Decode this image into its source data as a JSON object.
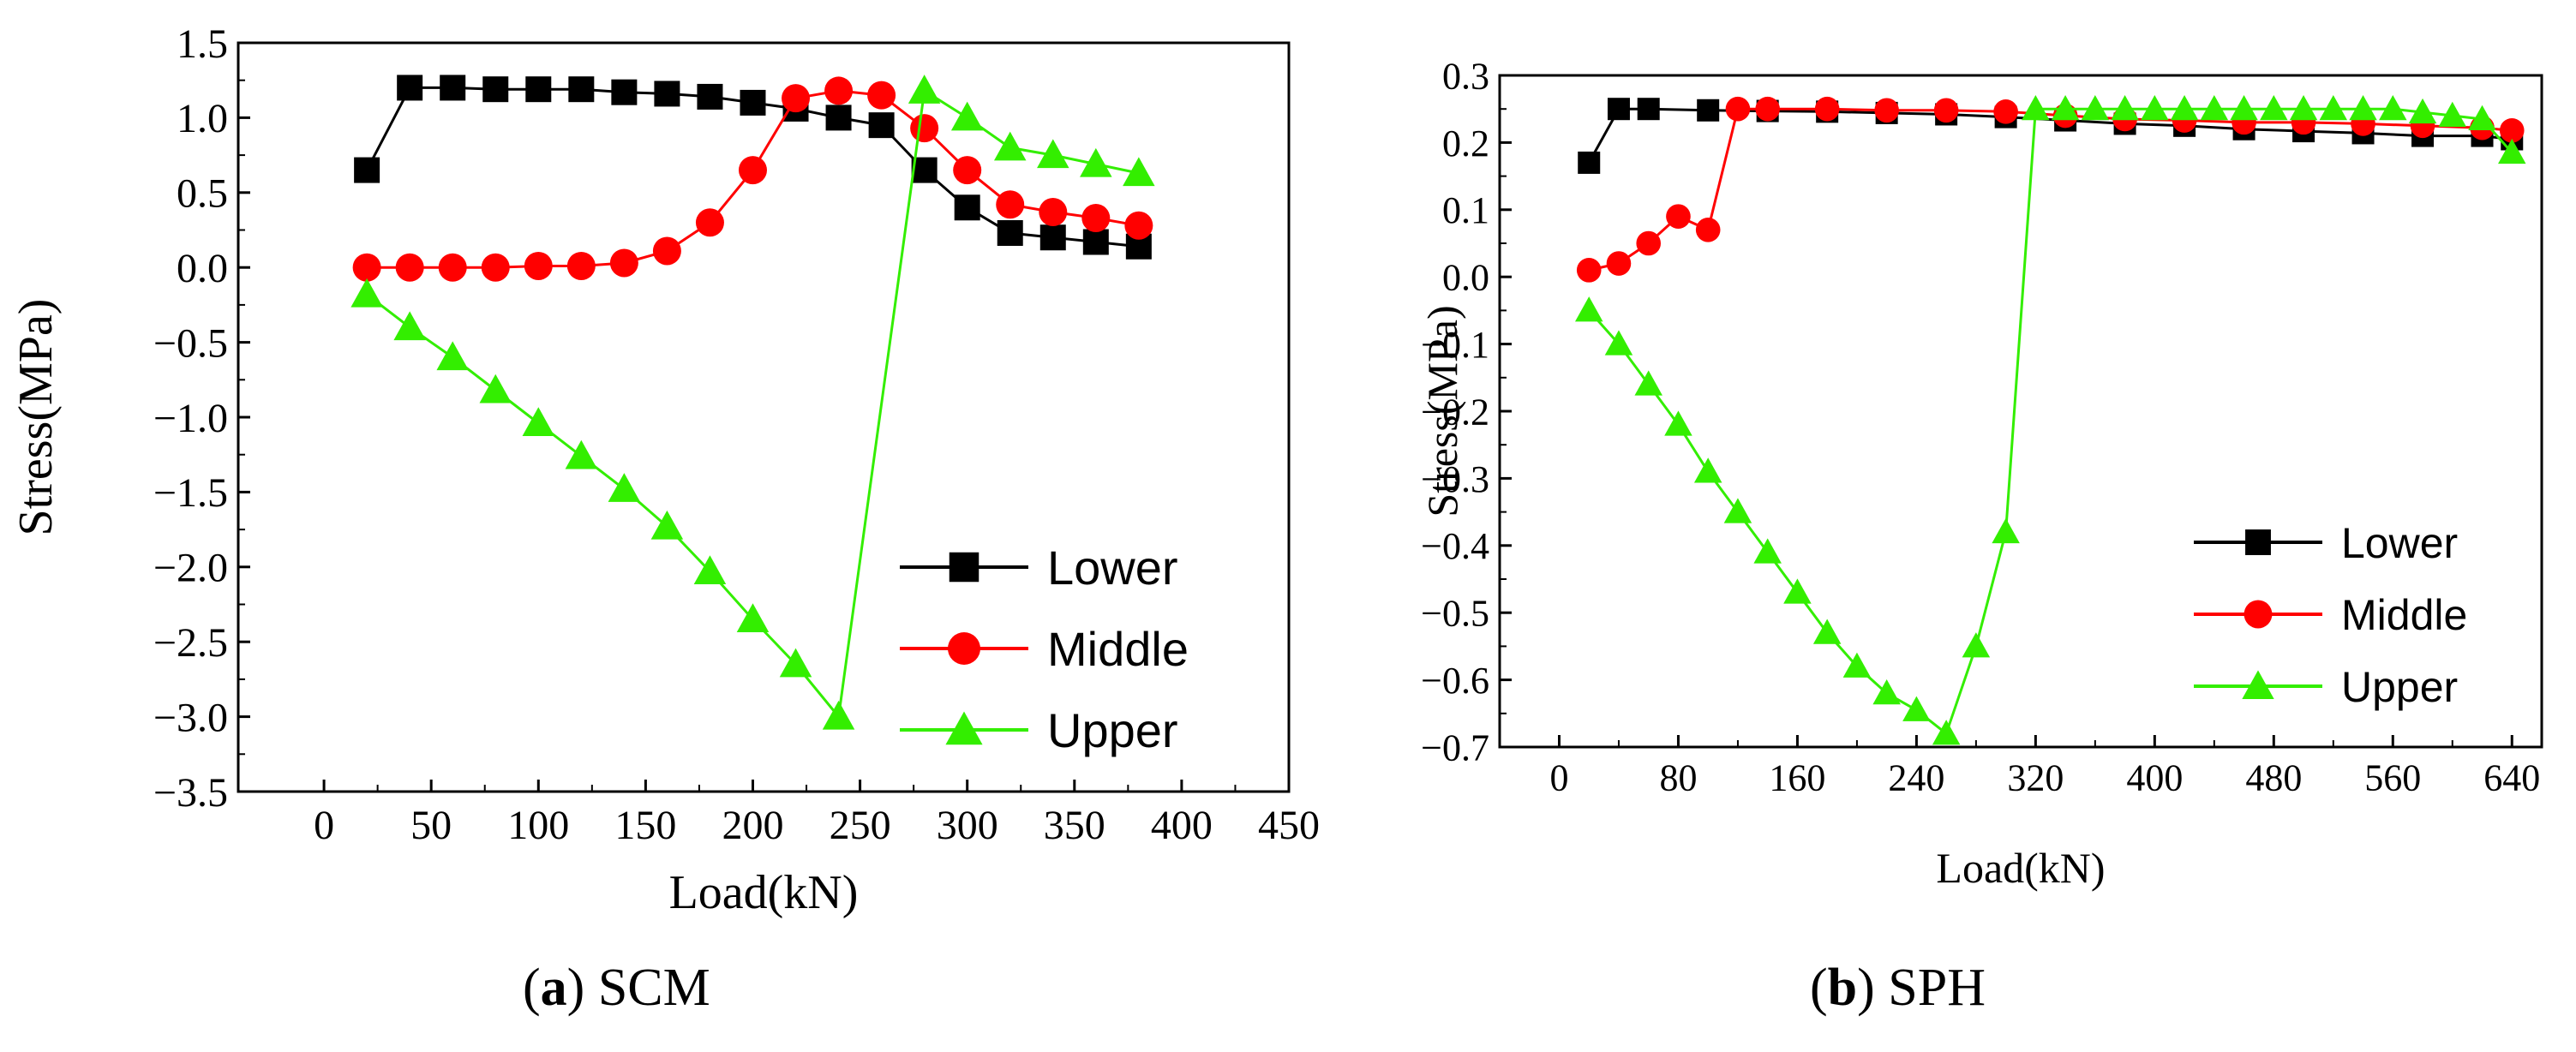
{
  "chart_data": [
    {
      "type": "line",
      "panel_label": "a",
      "caption": "SCM",
      "xlabel": "Load(kN)",
      "ylabel": "Stress(MPa)",
      "xlim": [
        -40,
        450
      ],
      "ylim": [
        -3.5,
        1.5
      ],
      "xticks": [
        0,
        50,
        100,
        150,
        200,
        250,
        300,
        350,
        400,
        450
      ],
      "xtick_labels": [
        "0",
        "50",
        "100",
        "150",
        "200",
        "250",
        "300",
        "350",
        "400",
        "450"
      ],
      "yticks": [
        1.5,
        1.0,
        0.5,
        0.0,
        -0.5,
        -1.0,
        -1.5,
        -2.0,
        -2.5,
        -3.0,
        -3.5
      ],
      "ytick_labels": [
        "1.5",
        "1.0",
        "0.5",
        "0.0",
        "−0.5",
        "−1.0",
        "−1.5",
        "−2.0",
        "−2.5",
        "−3.0",
        "−3.5"
      ],
      "legend_position": "bottom-right",
      "series": [
        {
          "name": "Lower",
          "color": "#000000",
          "marker": "square",
          "x": [
            20,
            40,
            60,
            80,
            100,
            120,
            140,
            160,
            180,
            200,
            220,
            240,
            260,
            280,
            300,
            320,
            340,
            360,
            380
          ],
          "y": [
            0.65,
            1.2,
            1.2,
            1.19,
            1.19,
            1.19,
            1.17,
            1.16,
            1.14,
            1.1,
            1.06,
            1.0,
            0.95,
            0.65,
            0.4,
            0.23,
            0.2,
            0.17,
            0.14
          ]
        },
        {
          "name": "Middle",
          "color": "#ff0000",
          "marker": "circle",
          "x": [
            20,
            40,
            60,
            80,
            100,
            120,
            140,
            160,
            180,
            200,
            220,
            240,
            260,
            280,
            300,
            320,
            340,
            360,
            380
          ],
          "y": [
            0.0,
            0.0,
            0.0,
            0.0,
            0.01,
            0.01,
            0.03,
            0.11,
            0.3,
            0.65,
            1.13,
            1.18,
            1.15,
            0.93,
            0.65,
            0.42,
            0.37,
            0.33,
            0.28
          ]
        },
        {
          "name": "Upper",
          "color": "#33ee00",
          "marker": "triangle",
          "x": [
            20,
            40,
            60,
            80,
            100,
            120,
            140,
            160,
            180,
            200,
            220,
            240,
            280,
            300,
            320,
            340,
            360,
            380
          ],
          "y": [
            -0.18,
            -0.4,
            -0.6,
            -0.82,
            -1.04,
            -1.26,
            -1.48,
            -1.73,
            -2.03,
            -2.35,
            -2.65,
            -3.0,
            1.18,
            1.0,
            0.8,
            0.75,
            0.69,
            0.63
          ]
        }
      ]
    },
    {
      "type": "line",
      "panel_label": "b",
      "caption": "SPH",
      "xlabel": "Load(kN)",
      "ylabel": "Stress(MPa)",
      "xlim": [
        -40,
        660
      ],
      "ylim": [
        -0.7,
        0.3
      ],
      "xticks": [
        0,
        80,
        160,
        240,
        320,
        400,
        480,
        560,
        640
      ],
      "xtick_labels": [
        "0",
        "80",
        "160",
        "240",
        "320",
        "400",
        "480",
        "560",
        "640"
      ],
      "yticks": [
        0.3,
        0.2,
        0.1,
        0.0,
        -0.1,
        -0.2,
        -0.3,
        -0.4,
        -0.5,
        -0.6,
        -0.7
      ],
      "ytick_labels": [
        "0.3",
        "0.2",
        "0.1",
        "0.0",
        "−0.1",
        "−0.2",
        "−0.3",
        "−0.4",
        "−0.5",
        "−0.6",
        "−0.7"
      ],
      "legend_position": "bottom-right",
      "series": [
        {
          "name": "Lower",
          "color": "#000000",
          "marker": "square",
          "x": [
            20,
            40,
            60,
            100,
            140,
            180,
            220,
            260,
            300,
            340,
            380,
            420,
            460,
            500,
            540,
            580,
            620,
            640
          ],
          "y": [
            0.17,
            0.25,
            0.25,
            0.248,
            0.247,
            0.246,
            0.244,
            0.242,
            0.238,
            0.233,
            0.228,
            0.225,
            0.22,
            0.217,
            0.214,
            0.21,
            0.21,
            0.205
          ]
        },
        {
          "name": "Middle",
          "color": "#ff0000",
          "marker": "circle",
          "x": [
            20,
            40,
            60,
            80,
            100,
            120,
            140,
            180,
            220,
            260,
            300,
            340,
            380,
            420,
            460,
            500,
            540,
            580,
            620,
            640
          ],
          "y": [
            0.01,
            0.02,
            0.05,
            0.09,
            0.07,
            0.25,
            0.25,
            0.25,
            0.248,
            0.248,
            0.246,
            0.24,
            0.235,
            0.233,
            0.23,
            0.23,
            0.228,
            0.225,
            0.222,
            0.218
          ]
        },
        {
          "name": "Upper",
          "color": "#33ee00",
          "marker": "triangle",
          "x": [
            20,
            40,
            60,
            80,
            100,
            120,
            140,
            160,
            180,
            200,
            220,
            240,
            260,
            280,
            300,
            320,
            340,
            360,
            380,
            400,
            420,
            440,
            460,
            480,
            500,
            520,
            540,
            560,
            580,
            600,
            620,
            640
          ],
          "y": [
            -0.05,
            -0.1,
            -0.16,
            -0.22,
            -0.29,
            -0.35,
            -0.41,
            -0.47,
            -0.53,
            -0.58,
            -0.62,
            -0.645,
            -0.68,
            -0.55,
            -0.38,
            0.25,
            0.25,
            0.25,
            0.25,
            0.25,
            0.25,
            0.25,
            0.25,
            0.25,
            0.25,
            0.25,
            0.25,
            0.25,
            0.245,
            0.24,
            0.235,
            0.185
          ]
        }
      ]
    }
  ]
}
